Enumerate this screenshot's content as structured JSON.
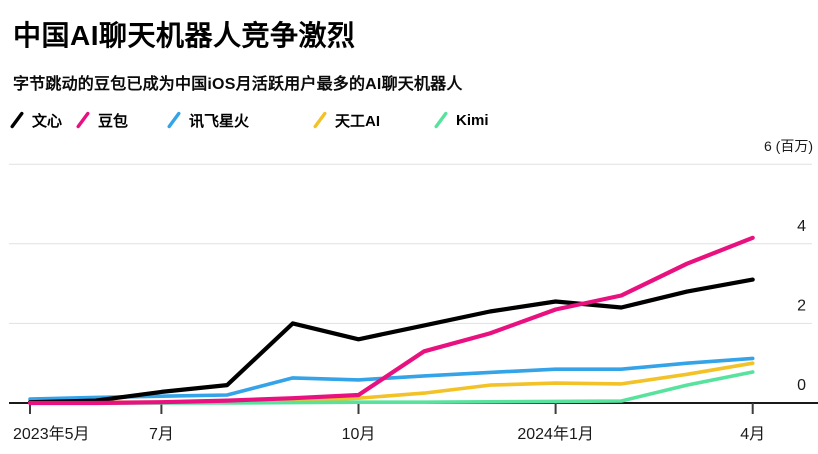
{
  "header": {
    "title": "中国AI聊天机器人竞争激烈",
    "subtitle": "字节跳动的豆包已成为中国iOS月活跃用户最多的AI聊天机器人"
  },
  "chart_data": {
    "type": "line",
    "title": "中国AI聊天机器人竞争激烈",
    "subtitle": "字节跳动的豆包已成为中国iOS月活跃用户最多的AI聊天机器人",
    "unit": "百万",
    "x": [
      "2023年5月",
      "2023年6月",
      "2023年7月",
      "2023年8月",
      "2023年9月",
      "2023年10月",
      "2023年11月",
      "2023年12月",
      "2024年1月",
      "2024年2月",
      "2024年3月",
      "2024年4月"
    ],
    "x_axis_ticks": [
      {
        "index": 0,
        "label": "2023年5月"
      },
      {
        "index": 2,
        "label": "7月"
      },
      {
        "index": 5,
        "label": "10月"
      },
      {
        "index": 8,
        "label": "2024年1月"
      },
      {
        "index": 11,
        "label": "4月"
      }
    ],
    "y_axis_ticks": [
      {
        "value": 0,
        "label": "0"
      },
      {
        "value": 2,
        "label": "2"
      },
      {
        "value": 4,
        "label": "4"
      },
      {
        "value": 6,
        "label": "6 (百万)"
      }
    ],
    "ylim": [
      0,
      6
    ],
    "grid": "horizontal",
    "legend_position": "top",
    "series": [
      {
        "id": "wenxin",
        "name": "文心",
        "color": "#000000",
        "values": [
          0.02,
          0.06,
          0.28,
          0.45,
          2.0,
          1.6,
          1.95,
          2.3,
          2.55,
          2.4,
          2.8,
          3.1
        ]
      },
      {
        "id": "doubao",
        "name": "豆包",
        "color": "#e8117f",
        "values": [
          0.0,
          0.0,
          0.02,
          0.06,
          0.12,
          0.2,
          1.3,
          1.75,
          2.35,
          2.7,
          3.5,
          4.15
        ]
      },
      {
        "id": "xunfei-xinghuo",
        "name": "讯飞星火",
        "color": "#34a3e8",
        "values": [
          0.1,
          0.14,
          0.17,
          0.2,
          0.63,
          0.58,
          0.68,
          0.77,
          0.85,
          0.85,
          1.0,
          1.12
        ]
      },
      {
        "id": "tiangong-ai",
        "name": "天工AI",
        "color": "#f3c226",
        "values": [
          0.02,
          0.02,
          0.02,
          0.03,
          0.05,
          0.12,
          0.25,
          0.45,
          0.5,
          0.48,
          0.72,
          1.0
        ]
      },
      {
        "id": "kimi",
        "name": "Kimi",
        "color": "#57e29d",
        "values": [
          0.0,
          0.0,
          0.0,
          0.0,
          0.01,
          0.02,
          0.02,
          0.03,
          0.04,
          0.05,
          0.45,
          0.78
        ]
      }
    ]
  }
}
